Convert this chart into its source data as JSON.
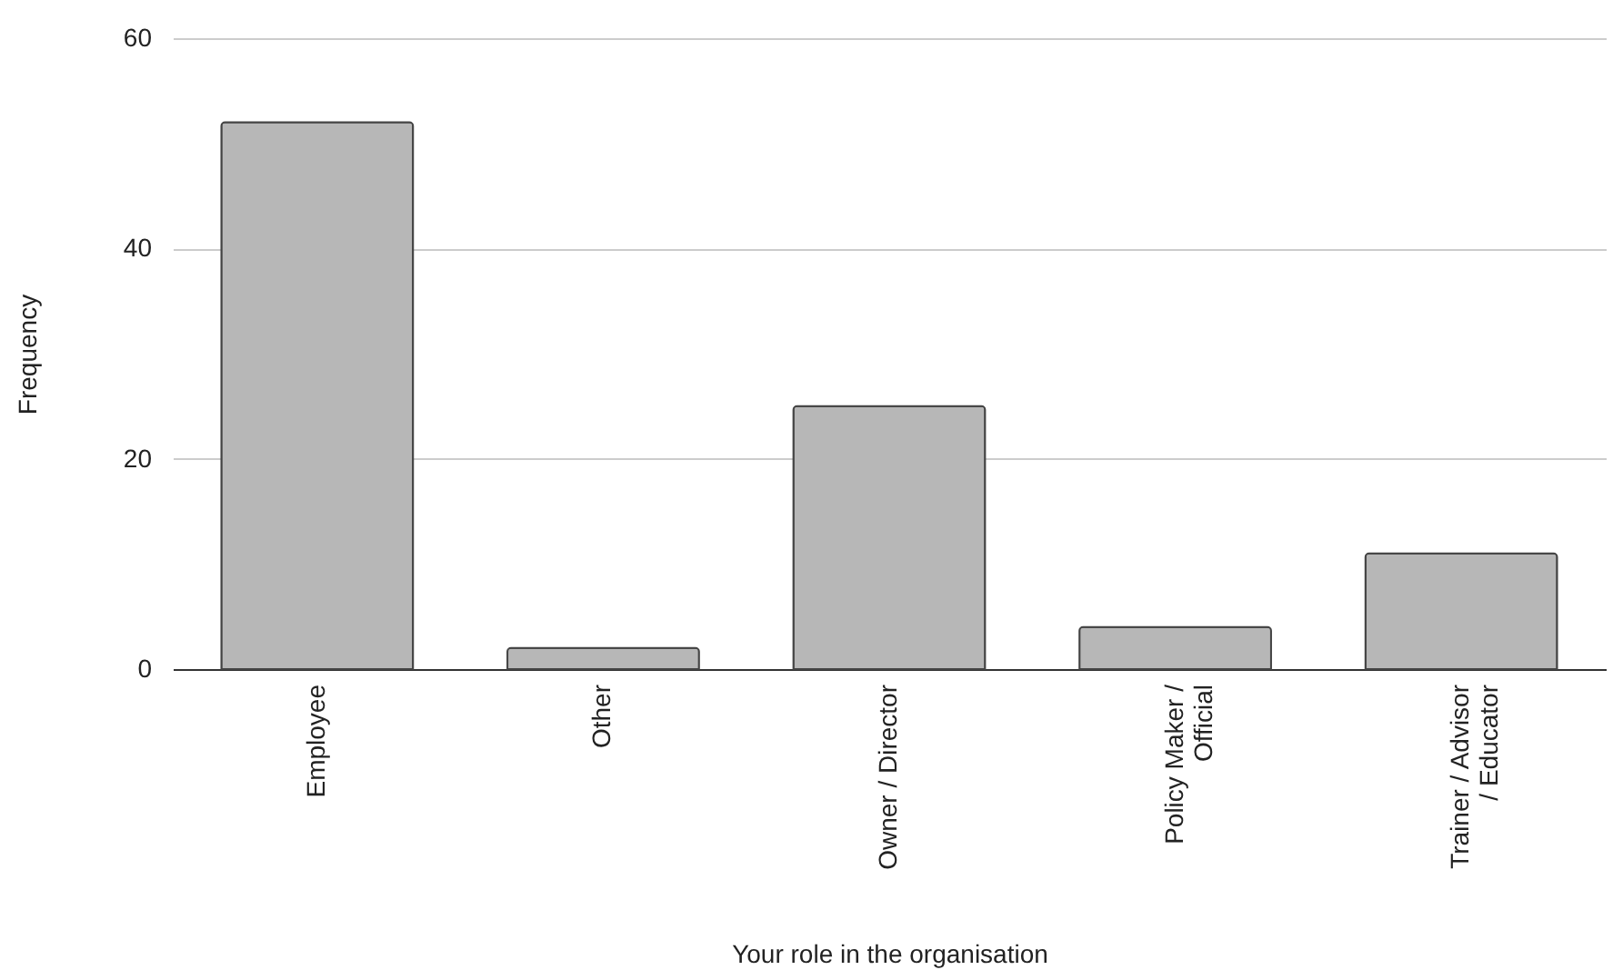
{
  "chart_data": {
    "type": "bar",
    "xlabel": "Your role in the organisation",
    "ylabel": "Frequency",
    "categories": [
      "Employee",
      "Other",
      "Owner / Director",
      "Policy Maker / Official",
      "Trainer / Advisor / Educator"
    ],
    "values": [
      52,
      2,
      25,
      4,
      11
    ],
    "color": "#b7b7b7",
    "ylim": [
      0,
      60
    ],
    "yticks": [
      0,
      20,
      40,
      60
    ],
    "grid": "y"
  }
}
